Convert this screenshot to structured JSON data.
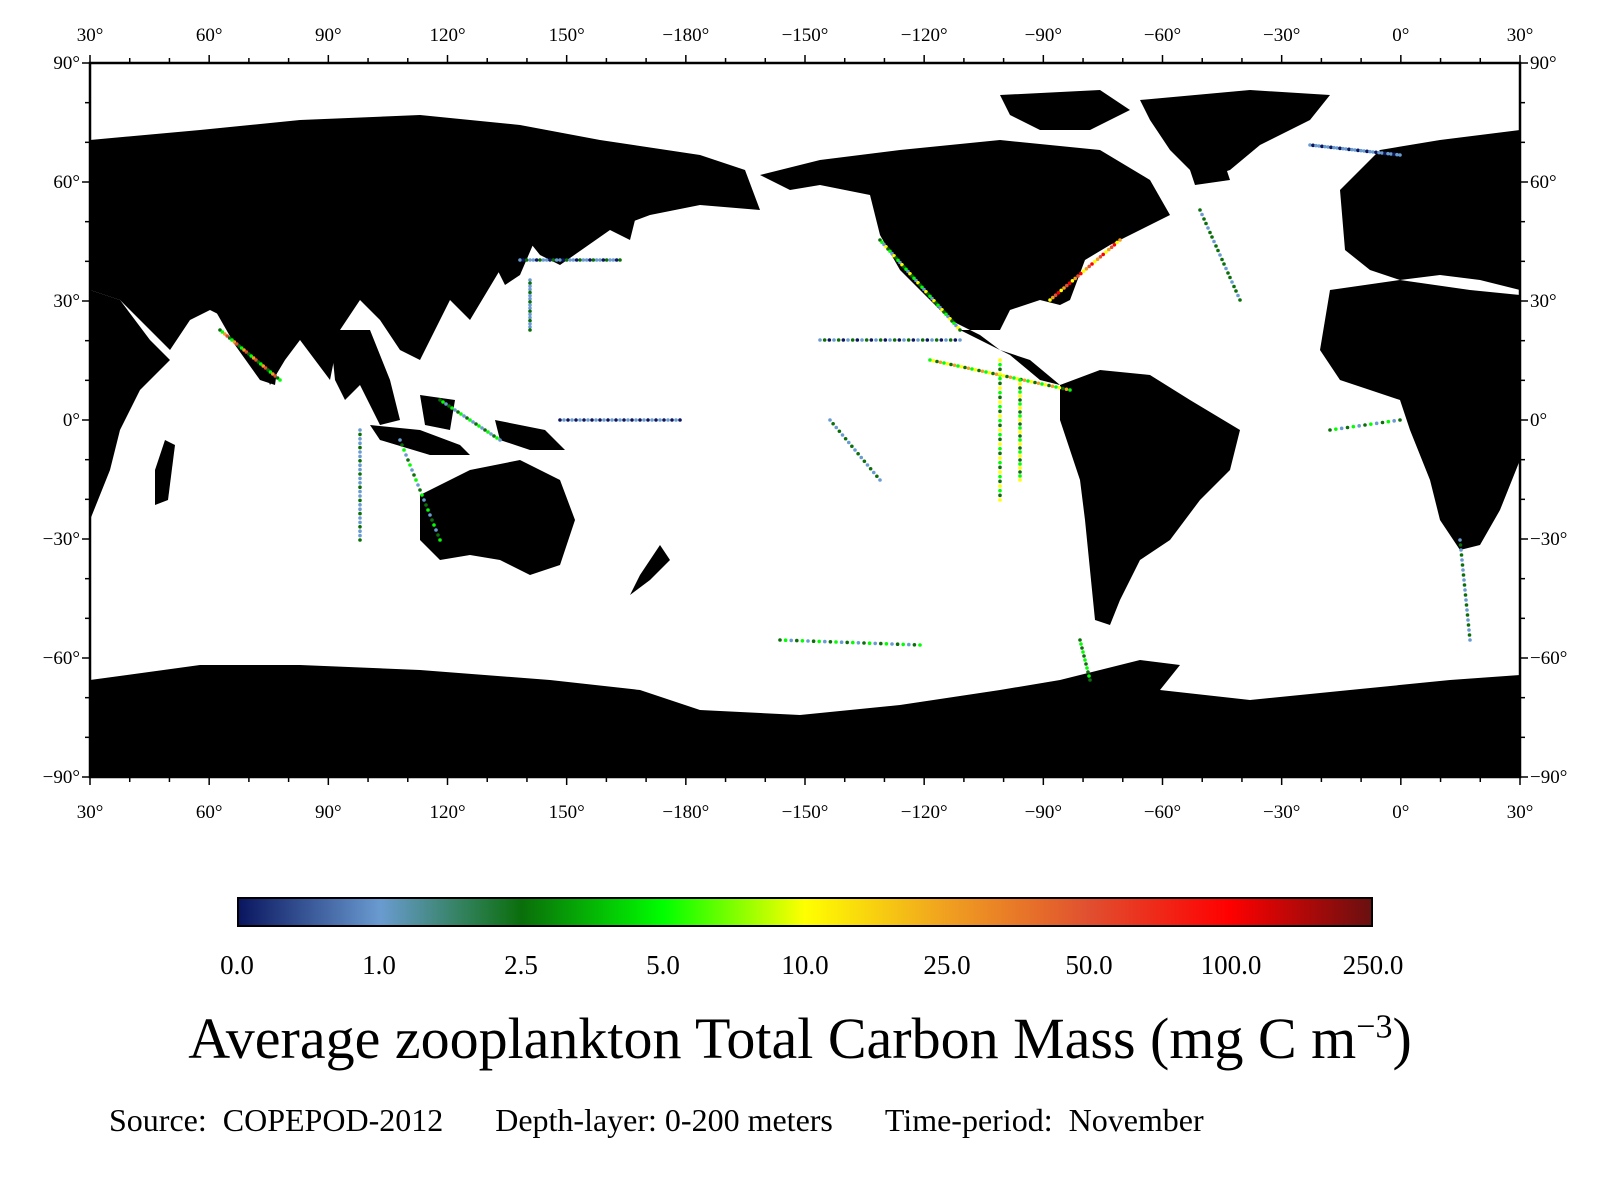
{
  "map": {
    "lon_ticks": [
      "30°",
      "60°",
      "90°",
      "120°",
      "150°",
      "−180°",
      "−150°",
      "−120°",
      "−90°",
      "−60°",
      "−30°",
      "0°",
      "30°"
    ],
    "lat_ticks": [
      "90°",
      "60°",
      "30°",
      "0°",
      "−30°",
      "−60°",
      "−90°"
    ],
    "land_color": "#000000",
    "ocean_color": "#ffffff",
    "central_meridian": "−150°"
  },
  "colorbar": {
    "labels": [
      "0.0",
      "1.0",
      "2.5",
      "5.0",
      "10.0",
      "25.0",
      "50.0",
      "100.0",
      "250.0"
    ],
    "colors": [
      "#0a1660",
      "#6a9bd0",
      "#0a6e0a",
      "#00ff00",
      "#ffff00",
      "#f0a020",
      "#e05030",
      "#ff0000",
      "#6a1010"
    ]
  },
  "title": {
    "main": "Average zooplankton Total Carbon Mass (mg C m",
    "superscript": "−3",
    "close": ")"
  },
  "footer": {
    "source": "Source:  COPEPOD-2012",
    "depth": "Depth-layer: 0-200 meters",
    "period": "Time-period:  November"
  }
}
